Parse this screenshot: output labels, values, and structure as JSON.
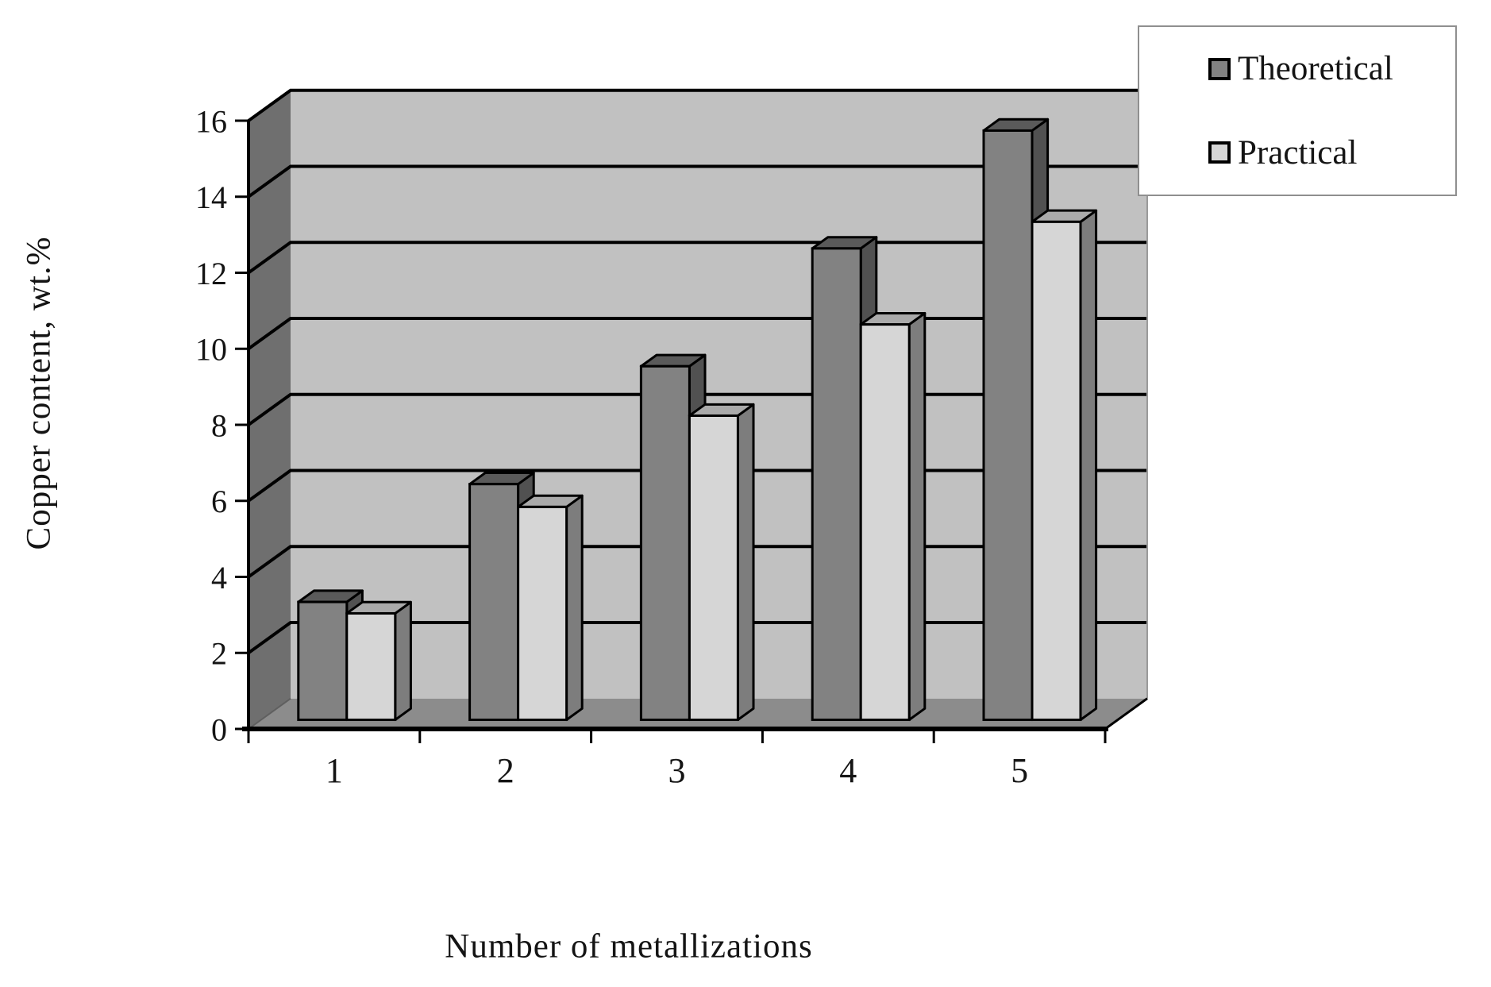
{
  "figure": {
    "background": "#ffffff",
    "text_color": "#141414"
  },
  "chart_data": {
    "type": "bar",
    "projection": "3d",
    "title": "",
    "xlabel": "Number of metallizations",
    "ylabel": "Copper content, wt.%",
    "categories": [
      "1",
      "2",
      "3",
      "4",
      "5"
    ],
    "series": [
      {
        "name": "Theoretical",
        "values": [
          3.1,
          6.2,
          9.3,
          12.4,
          15.5
        ],
        "colors": {
          "front": "#828282",
          "top": "#5a5a5a",
          "side": "#515151"
        }
      },
      {
        "name": "Practical",
        "values": [
          2.8,
          5.6,
          8.0,
          10.4,
          13.1
        ],
        "colors": {
          "front": "#d6d6d6",
          "top": "#aaaaaa",
          "side": "#7d7d7d"
        }
      }
    ],
    "ylim": [
      0,
      16
    ],
    "yticks": [
      0,
      2,
      4,
      6,
      8,
      10,
      12,
      14,
      16
    ],
    "grid": true,
    "legend_position": "top-right",
    "wall_colors": {
      "back": "#c1c1c1",
      "left": "#6f6f6f",
      "floor": "#8c8c8c"
    },
    "line_color": "#000000"
  },
  "legend": {
    "items": [
      {
        "label": "Theoretical",
        "swatch": "#828282"
      },
      {
        "label": "Practical",
        "swatch": "#d6d6d6"
      }
    ]
  }
}
